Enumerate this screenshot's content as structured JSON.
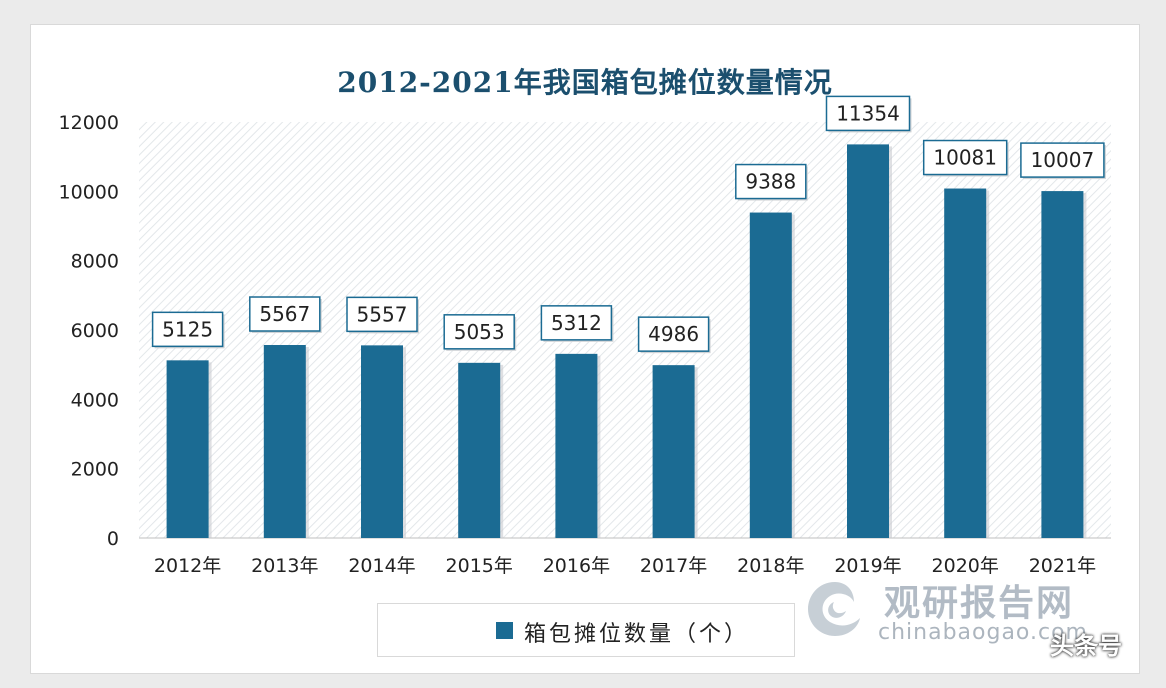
{
  "colors": {
    "bar": "#1b6b93",
    "title": "#1b4f6e",
    "label_border": "#1b6b93"
  },
  "chart_data": {
    "type": "bar",
    "title": "2012-2021年我国箱包摊位数量情况",
    "categories": [
      "2012年",
      "2013年",
      "2014年",
      "2015年",
      "2016年",
      "2017年",
      "2018年",
      "2019年",
      "2020年",
      "2021年"
    ],
    "series": [
      {
        "name": "箱包摊位数量（个）",
        "values": [
          5125,
          5567,
          5557,
          5053,
          5312,
          4986,
          9388,
          11354,
          10081,
          10007
        ]
      }
    ],
    "ylim": [
      0,
      12000
    ],
    "yticks": [
      0,
      2000,
      4000,
      6000,
      8000,
      10000,
      12000
    ],
    "grid": false,
    "legend_position": "bottom"
  },
  "watermark": {
    "brand": "观研报告网",
    "domain": "chinabaogao.com",
    "stamp": "头条号",
    "logo_icon": "swirl-logo-icon"
  }
}
